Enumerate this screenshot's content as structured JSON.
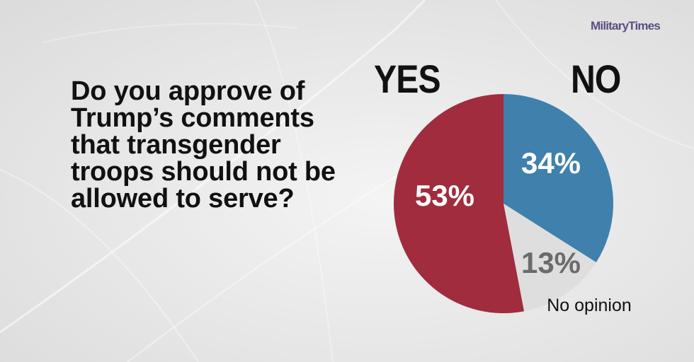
{
  "brand": {
    "part1": "Military",
    "part2": "Times"
  },
  "question": "Do you approve of Trump’s comments that transgender troops should not be allowed to serve?",
  "labels": {
    "yes": "YES",
    "no": "NO",
    "no_opinion": "No opinion"
  },
  "colors": {
    "yes": "#a02c3d",
    "no": "#3f80ad",
    "no_opinion": "#dedede",
    "yes_text": "#ffffff",
    "no_text": "#ffffff",
    "no_opinion_text": "#6b6b6b"
  },
  "chart_data": {
    "type": "pie",
    "slices": [
      {
        "label": "NO",
        "value": 34,
        "display": "34%"
      },
      {
        "label": "No opinion",
        "value": 13,
        "display": "13%"
      },
      {
        "label": "YES",
        "value": 53,
        "display": "53%"
      }
    ]
  }
}
